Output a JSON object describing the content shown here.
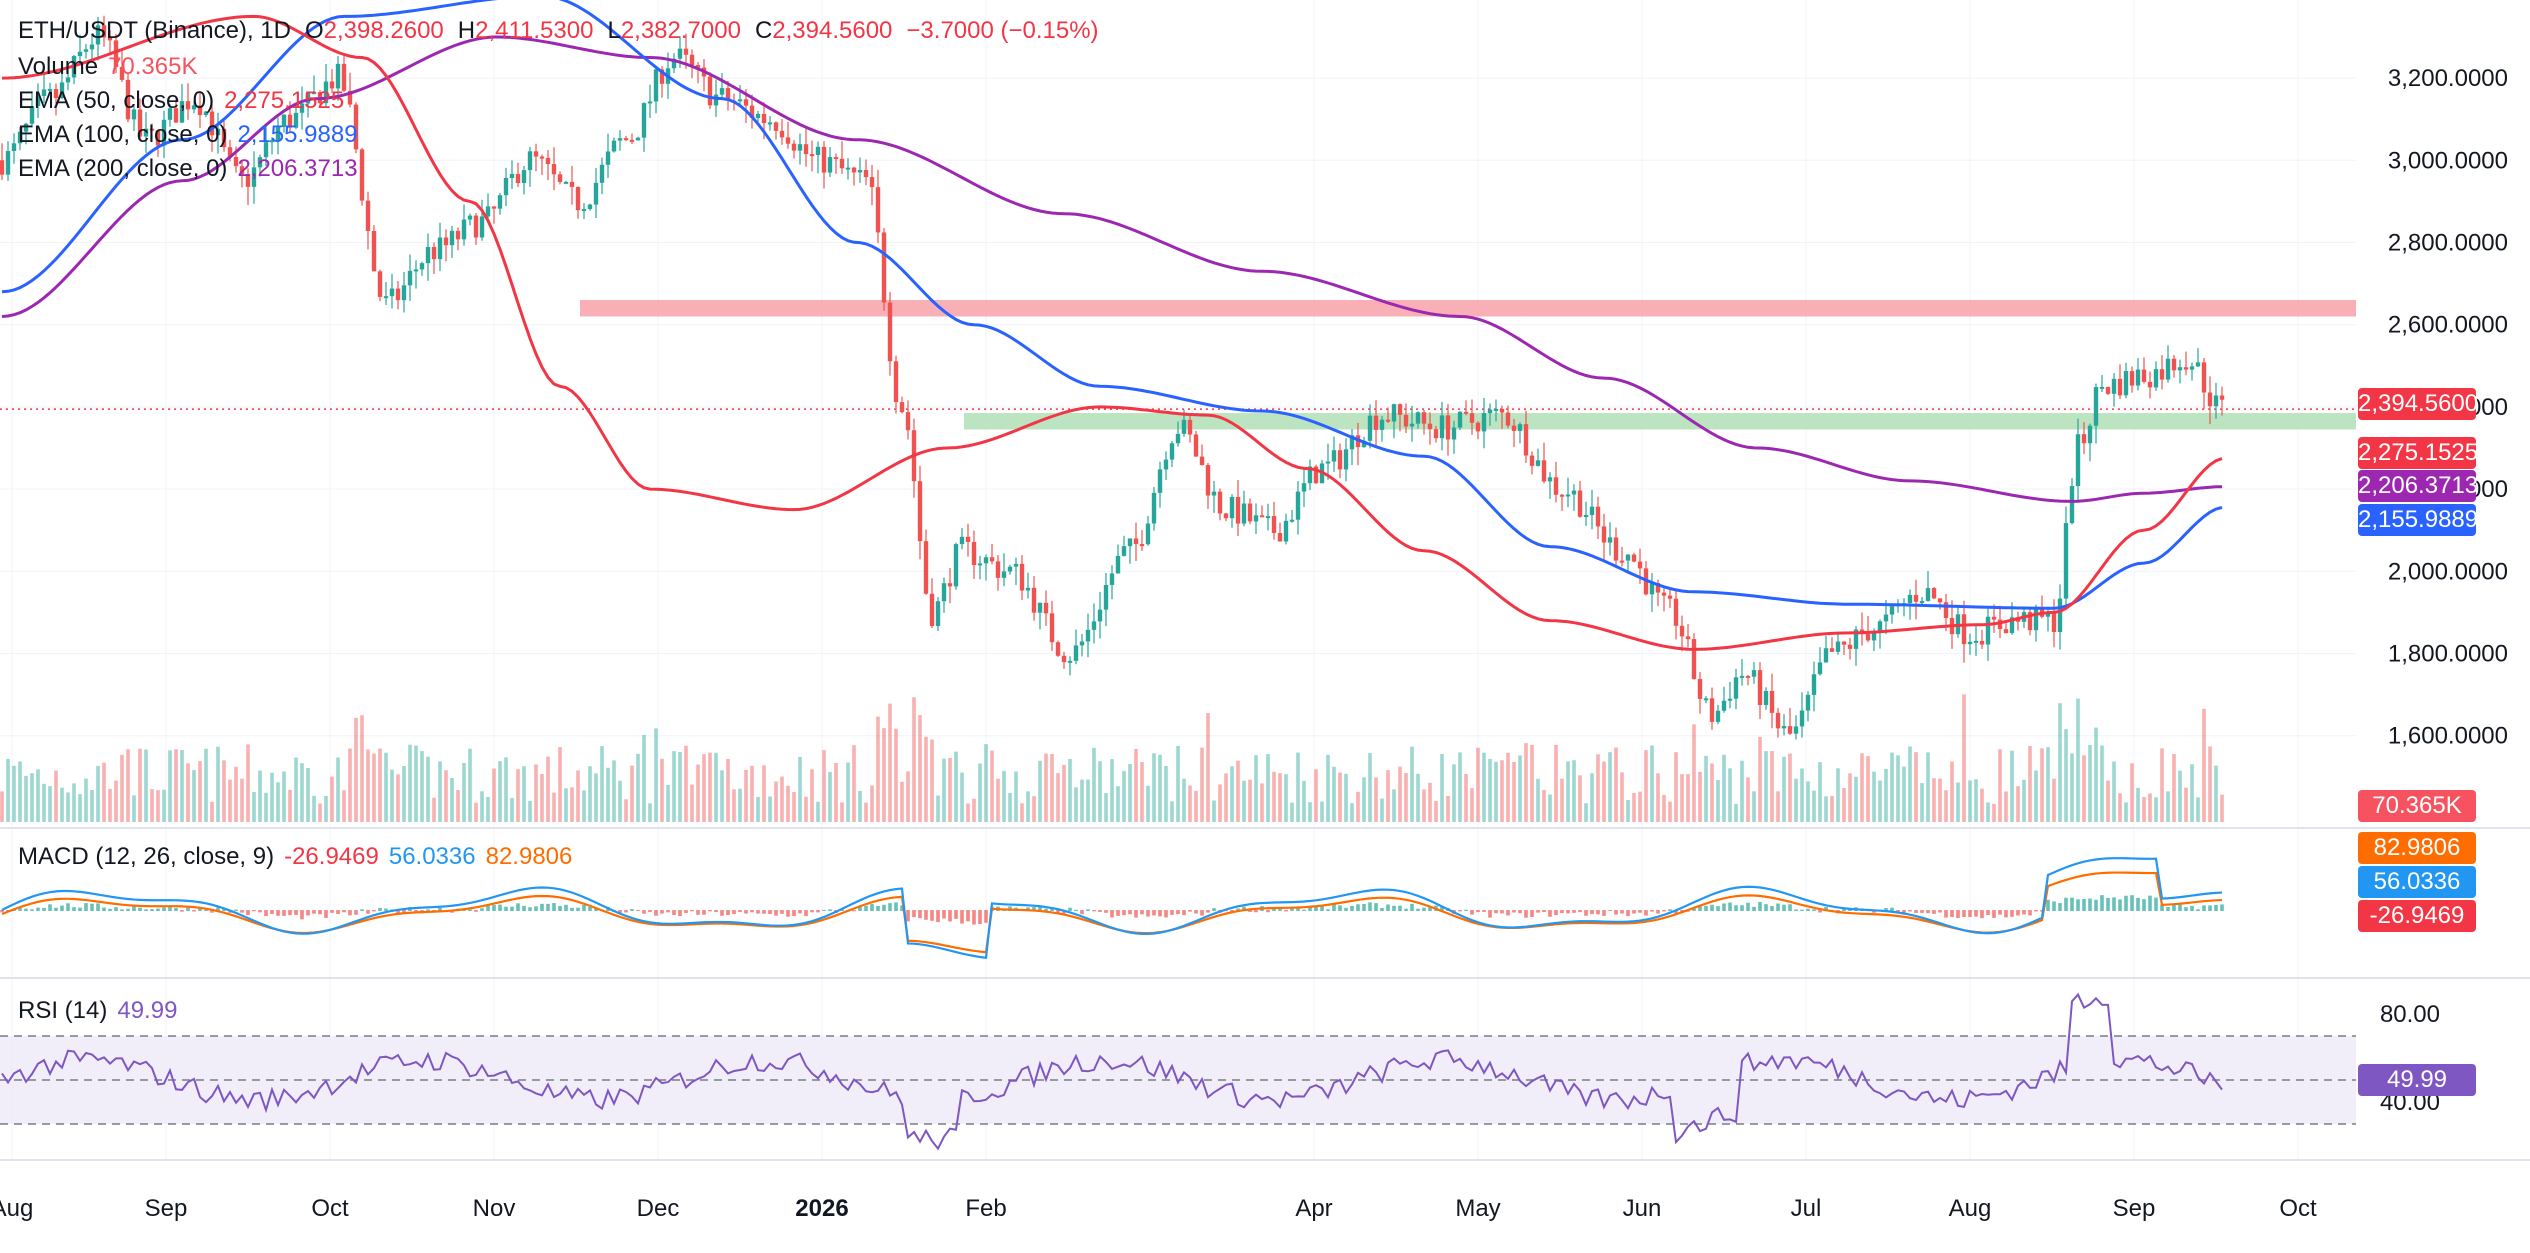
{
  "legend": {
    "symbol": "ETH/USDT (Binance), 1D",
    "open_label": "O",
    "open": "2,398.2600",
    "high_label": "H",
    "high": "2,411.5300",
    "low_label": "L",
    "low": "2,382.7000",
    "close_label": "C",
    "close": "2,394.5600",
    "change": "−3.7000 (−0.15%)",
    "volume_label": "Volume",
    "volume": "70.365K",
    "ema50_label": "EMA (50, close, 0)",
    "ema50": "2,275.1525",
    "ema100_label": "EMA (100, close, 0)",
    "ema100": "2,155.9889",
    "ema200_label": "EMA (200, close, 0)",
    "ema200": "2,206.3713",
    "macd_label": "MACD (12, 26, close, 9)",
    "macd_hist": "-26.9469",
    "macd_line": "56.0336",
    "macd_signal": "82.9806",
    "rsi_label": "RSI (14)",
    "rsi": "49.99"
  },
  "colors": {
    "up": "#26a69a",
    "down": "#ef5350",
    "ema50": "#f23645",
    "ema100": "#2962ff",
    "ema200": "#9c27b0",
    "resistance_zone": "#f7a1a8",
    "support_zone": "#b2dfb6",
    "macd_line": "#2196f3",
    "macd_signal": "#ff6d00",
    "rsi": "#7e57c2",
    "price_badge": "#f23645"
  },
  "badges": {
    "price": "2,394.5600",
    "ema50": "2,275.1525",
    "ema200": "2,206.3713",
    "ema100": "2,155.9889",
    "volume": "70.365K",
    "macd_signal": "82.9806",
    "macd_line": "56.0336",
    "macd_hist": "-26.9469",
    "rsi": "49.99"
  },
  "chart_data": {
    "type": "candlestick",
    "price_axis": {
      "ticks": [
        "1,600.0000",
        "1,800.0000",
        "2,000.0000",
        "2,200.0000",
        "2,400.0000",
        "2,600.0000",
        "2,800.0000",
        "3,000.0000",
        "3,200.0000"
      ],
      "values": [
        1600,
        1800,
        2000,
        2200,
        2400,
        2600,
        2800,
        3000,
        3200
      ],
      "range": [
        1390,
        3390
      ]
    },
    "rsi_axis": {
      "ticks": [
        "40.00",
        "80.00"
      ],
      "values": [
        40,
        80
      ],
      "bands": [
        30,
        50,
        70
      ]
    },
    "time_axis": [
      "Aug",
      "Sep",
      "Oct",
      "Nov",
      "Dec",
      "2026",
      "Feb",
      "Apr",
      "May",
      "Jun",
      "Jul",
      "Aug",
      "Sep",
      "Oct"
    ],
    "last_price": 2394.56,
    "zones": [
      {
        "name": "resistance",
        "low": 2620,
        "high": 2660,
        "from": "2025-11-17"
      },
      {
        "name": "support",
        "low": 2345,
        "high": 2385,
        "from": "2026-01-25"
      }
    ],
    "ema_anchors": {
      "ema50": [
        [
          0,
          3200
        ],
        [
          28,
          3350
        ],
        [
          40,
          3250
        ],
        [
          52,
          2900
        ],
        [
          62,
          2450
        ],
        [
          72,
          2200
        ],
        [
          88,
          2150
        ],
        [
          105,
          2300
        ],
        [
          122,
          2400
        ],
        [
          134,
          2380
        ],
        [
          145,
          2250
        ],
        [
          158,
          2050
        ],
        [
          172,
          1880
        ],
        [
          188,
          1810
        ],
        [
          205,
          1850
        ],
        [
          220,
          1870
        ],
        [
          228,
          1900
        ],
        [
          238,
          2100
        ],
        [
          247,
          2275
        ]
      ],
      "ema100": [
        [
          0,
          2680
        ],
        [
          20,
          3050
        ],
        [
          38,
          3350
        ],
        [
          60,
          3400
        ],
        [
          80,
          3150
        ],
        [
          95,
          2800
        ],
        [
          108,
          2600
        ],
        [
          122,
          2450
        ],
        [
          140,
          2390
        ],
        [
          158,
          2280
        ],
        [
          172,
          2060
        ],
        [
          188,
          1950
        ],
        [
          205,
          1920
        ],
        [
          228,
          1910
        ],
        [
          238,
          2020
        ],
        [
          247,
          2156
        ]
      ],
      "ema200": [
        [
          0,
          2620
        ],
        [
          20,
          2950
        ],
        [
          35,
          3150
        ],
        [
          55,
          3300
        ],
        [
          72,
          3250
        ],
        [
          95,
          3050
        ],
        [
          118,
          2870
        ],
        [
          140,
          2730
        ],
        [
          162,
          2620
        ],
        [
          178,
          2470
        ],
        [
          195,
          2300
        ],
        [
          212,
          2220
        ],
        [
          230,
          2170
        ],
        [
          238,
          2190
        ],
        [
          247,
          2206
        ]
      ]
    },
    "series": [
      {
        "name": "ETH/USDT",
        "kind": "candles"
      },
      {
        "name": "Volume",
        "kind": "bars"
      },
      {
        "name": "EMA (50, close, 0)",
        "kind": "line"
      },
      {
        "name": "EMA (100, close, 0)",
        "kind": "line"
      },
      {
        "name": "EMA (200, close, 0)",
        "kind": "line"
      },
      {
        "name": "MACD (12, 26, close, 9)",
        "kind": "histogram+lines"
      },
      {
        "name": "RSI (14)",
        "kind": "line"
      }
    ],
    "price_path": [
      [
        0,
        3000
      ],
      [
        8,
        3150
      ],
      [
        16,
        3300
      ],
      [
        24,
        3050
      ],
      [
        32,
        3150
      ],
      [
        40,
        2950
      ],
      [
        48,
        3100
      ],
      [
        56,
        3200
      ],
      [
        64,
        2650
      ],
      [
        72,
        2780
      ],
      [
        80,
        2850
      ],
      [
        88,
        3000
      ],
      [
        96,
        2900
      ],
      [
        104,
        3050
      ],
      [
        112,
        3250
      ],
      [
        120,
        3150
      ],
      [
        128,
        3100
      ],
      [
        136,
        3000
      ],
      [
        144,
        2950
      ],
      [
        150,
        2400
      ],
      [
        155,
        1900
      ],
      [
        160,
        2050
      ],
      [
        168,
        2000
      ],
      [
        178,
        1800
      ],
      [
        188,
        2050
      ],
      [
        196,
        2350
      ],
      [
        204,
        2150
      ],
      [
        212,
        2100
      ],
      [
        220,
        2250
      ],
      [
        230,
        2380
      ],
      [
        240,
        2350
      ],
      [
        250,
        2380
      ],
      [
        260,
        2200
      ],
      [
        270,
        2050
      ],
      [
        278,
        1900
      ],
      [
        285,
        1650
      ],
      [
        290,
        1750
      ],
      [
        298,
        1600
      ],
      [
        305,
        1800
      ],
      [
        312,
        1860
      ],
      [
        320,
        1950
      ],
      [
        328,
        1850
      ],
      [
        336,
        1880
      ],
      [
        342,
        1880
      ],
      [
        346,
        2300
      ],
      [
        350,
        2450
      ],
      [
        358,
        2480
      ],
      [
        364,
        2520
      ],
      [
        370,
        2394.56
      ]
    ]
  }
}
